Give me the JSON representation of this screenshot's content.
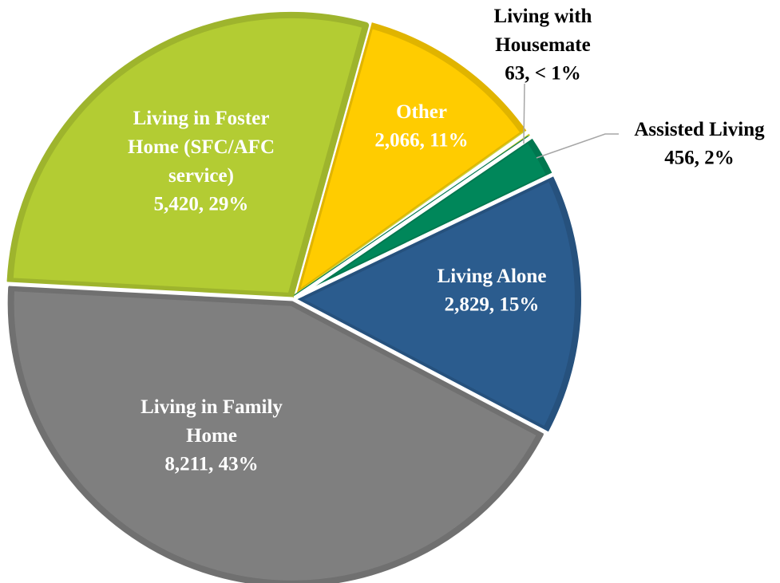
{
  "chart_data": {
    "type": "pie",
    "categories": [
      "Other",
      "Living with Housemate",
      "Assisted Living",
      "Living Alone",
      "Living in Family Home",
      "Living in Foster Home (SFC/AFC service)"
    ],
    "values": [
      2066,
      63,
      456,
      2829,
      8211,
      5420
    ],
    "value_labels": [
      "2,066, 11%",
      "63, < 1%",
      "456, 2%",
      "2,829, 15%",
      "8,211, 43%",
      "5,420, 29%"
    ],
    "colors": [
      "#ffcc00",
      "#e8ec3a",
      "#00875a",
      "#2b5c8e",
      "#7f7f7f",
      "#b3cc33"
    ]
  }
}
